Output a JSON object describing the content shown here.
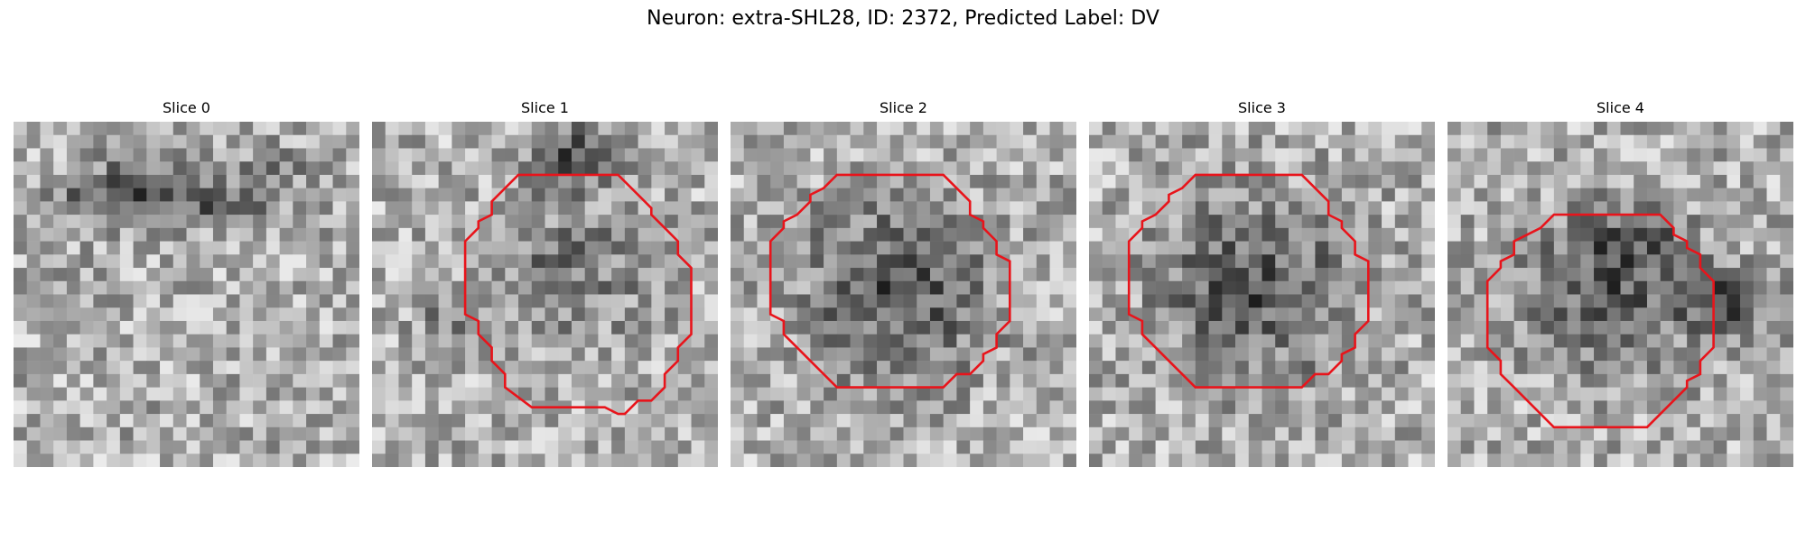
{
  "figure": {
    "title": "Neuron: extra-SHL28, ID: 2372, Predicted Label: DV",
    "outline_color": "#e8141b"
  },
  "panels": [
    {
      "title": "Slice 0",
      "has_outline": false,
      "dark_region": "upper-band"
    },
    {
      "title": "Slice 1",
      "has_outline": true,
      "dark_region": "center-and-top"
    },
    {
      "title": "Slice 2",
      "has_outline": true,
      "dark_region": "center"
    },
    {
      "title": "Slice 3",
      "has_outline": true,
      "dark_region": "center"
    },
    {
      "title": "Slice 4",
      "has_outline": true,
      "dark_region": "center-and-right"
    }
  ]
}
